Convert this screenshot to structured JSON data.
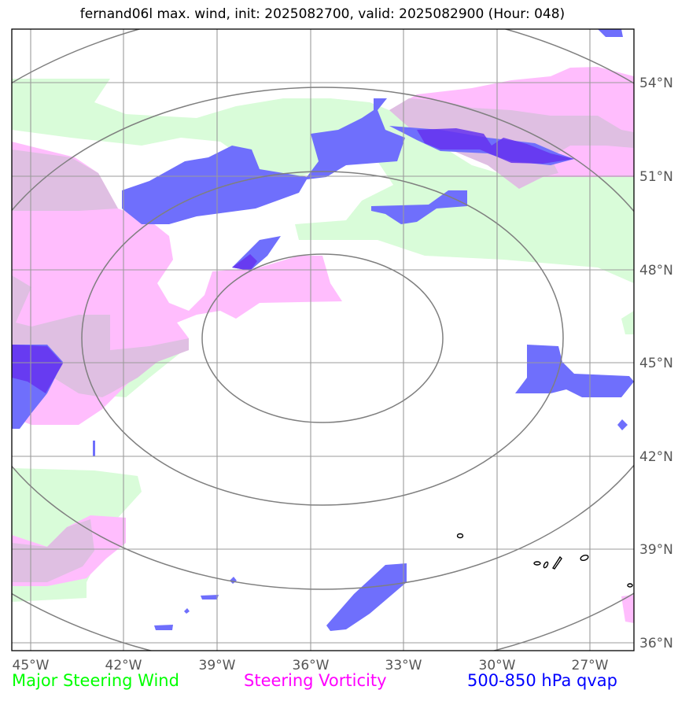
{
  "title": "fernand06l max. wind, init: 2025082700, valid: 2025082900 (Hour: 048)",
  "map": {
    "lon_range": [
      -45.6,
      -25.9
    ],
    "lat_range": [
      35.6,
      55.1
    ],
    "lon_ticks": [
      "45°W",
      "42°W",
      "39°W",
      "36°W",
      "33°W",
      "30°W",
      "27°W"
    ],
    "lat_ticks": [
      "36°N",
      "39°N",
      "42°N",
      "45°N",
      "48°N",
      "51°N",
      "54°N"
    ],
    "range_rings_center": {
      "lon": -36.3,
      "lat": 45.9
    },
    "colors": {
      "steering_wind": "#d9fcd9",
      "steering_vorticity": "#ffbdfd",
      "qvap": "#6f6ffc",
      "grid": "#9b9b9b",
      "rings": "#7f7f7f"
    }
  },
  "legend": [
    {
      "label": "Major Steering Wind",
      "color": "#00ff00"
    },
    {
      "label": "Steering Vorticity",
      "color": "#ff00ff"
    },
    {
      "label": "500-850 hPa qvap",
      "color": "#0000ff"
    }
  ]
}
